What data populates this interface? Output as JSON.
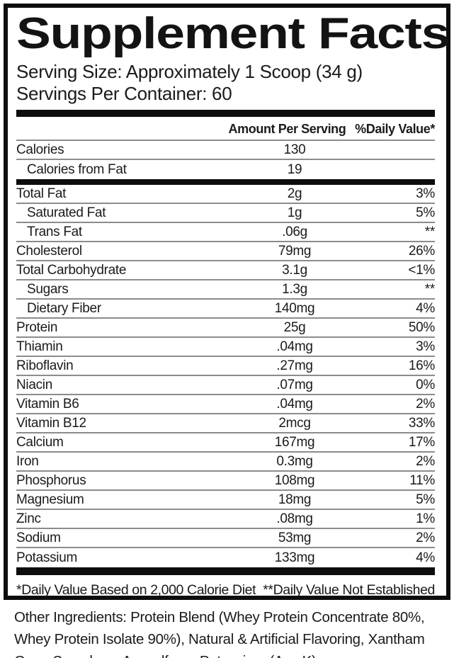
{
  "title": "Supplement Facts",
  "serving": {
    "size": "Serving Size: Approximately 1 Scoop (34 g)",
    "per_container": "Servings Per Container: 60"
  },
  "table": {
    "amount_header": "Amount Per Serving",
    "dv_header": "%Daily Value*",
    "rows": [
      {
        "name": "Calories",
        "amount": "130",
        "dv": ""
      },
      {
        "name": "Calories from Fat",
        "amount": "19",
        "dv": ""
      },
      {
        "name": "Total Fat",
        "amount": "2g",
        "dv": "3%"
      },
      {
        "name": "Saturated Fat",
        "amount": "1g",
        "dv": "5%"
      },
      {
        "name": "Trans Fat",
        "amount": ".06g",
        "dv": "**"
      },
      {
        "name": "Cholesterol",
        "amount": "79mg",
        "dv": "26%"
      },
      {
        "name": "Total Carbohydrate",
        "amount": "3.1g",
        "dv": "<1%"
      },
      {
        "name": "Sugars",
        "amount": "1.3g",
        "dv": "**"
      },
      {
        "name": "Dietary Fiber",
        "amount": "140mg",
        "dv": "4%"
      },
      {
        "name": "Protein",
        "amount": "25g",
        "dv": "50%"
      },
      {
        "name": "Thiamin",
        "amount": ".04mg",
        "dv": "3%"
      },
      {
        "name": "Riboflavin",
        "amount": ".27mg",
        "dv": "16%"
      },
      {
        "name": "Niacin",
        "amount": ".07mg",
        "dv": "0%"
      },
      {
        "name": "Vitamin B6",
        "amount": ".04mg",
        "dv": "2%"
      },
      {
        "name": "Vitamin B12",
        "amount": "2mcg",
        "dv": "33%"
      },
      {
        "name": "Calcium",
        "amount": "167mg",
        "dv": "17%"
      },
      {
        "name": "Iron",
        "amount": "0.3mg",
        "dv": "2%"
      },
      {
        "name": "Phosphorus",
        "amount": "108mg",
        "dv": "11%"
      },
      {
        "name": "Magnesium",
        "amount": "18mg",
        "dv": "5%"
      },
      {
        "name": "Zinc",
        "amount": ".08mg",
        "dv": "1%"
      },
      {
        "name": "Sodium",
        "amount": "53mg",
        "dv": "2%"
      },
      {
        "name": "Potassium",
        "amount": "133mg",
        "dv": "4%"
      }
    ]
  },
  "footnotes": {
    "left": "*Daily Value Based on 2,000 Calorie Diet",
    "right": "**Daily Value Not Established"
  },
  "other_ingredients": "Other Ingredients: Protein Blend (Whey Protein Concentrate 80%, Whey Protein Isolate 90%), Natural & Artificial Flavoring, Xantham Gum, Sucralose, Acesulfame Potassium (Ace K)",
  "colors": {
    "text": "#1c1a1b",
    "bar": "#0e0d0d",
    "divider": "#8c8c8c",
    "background": "#ffffff"
  }
}
